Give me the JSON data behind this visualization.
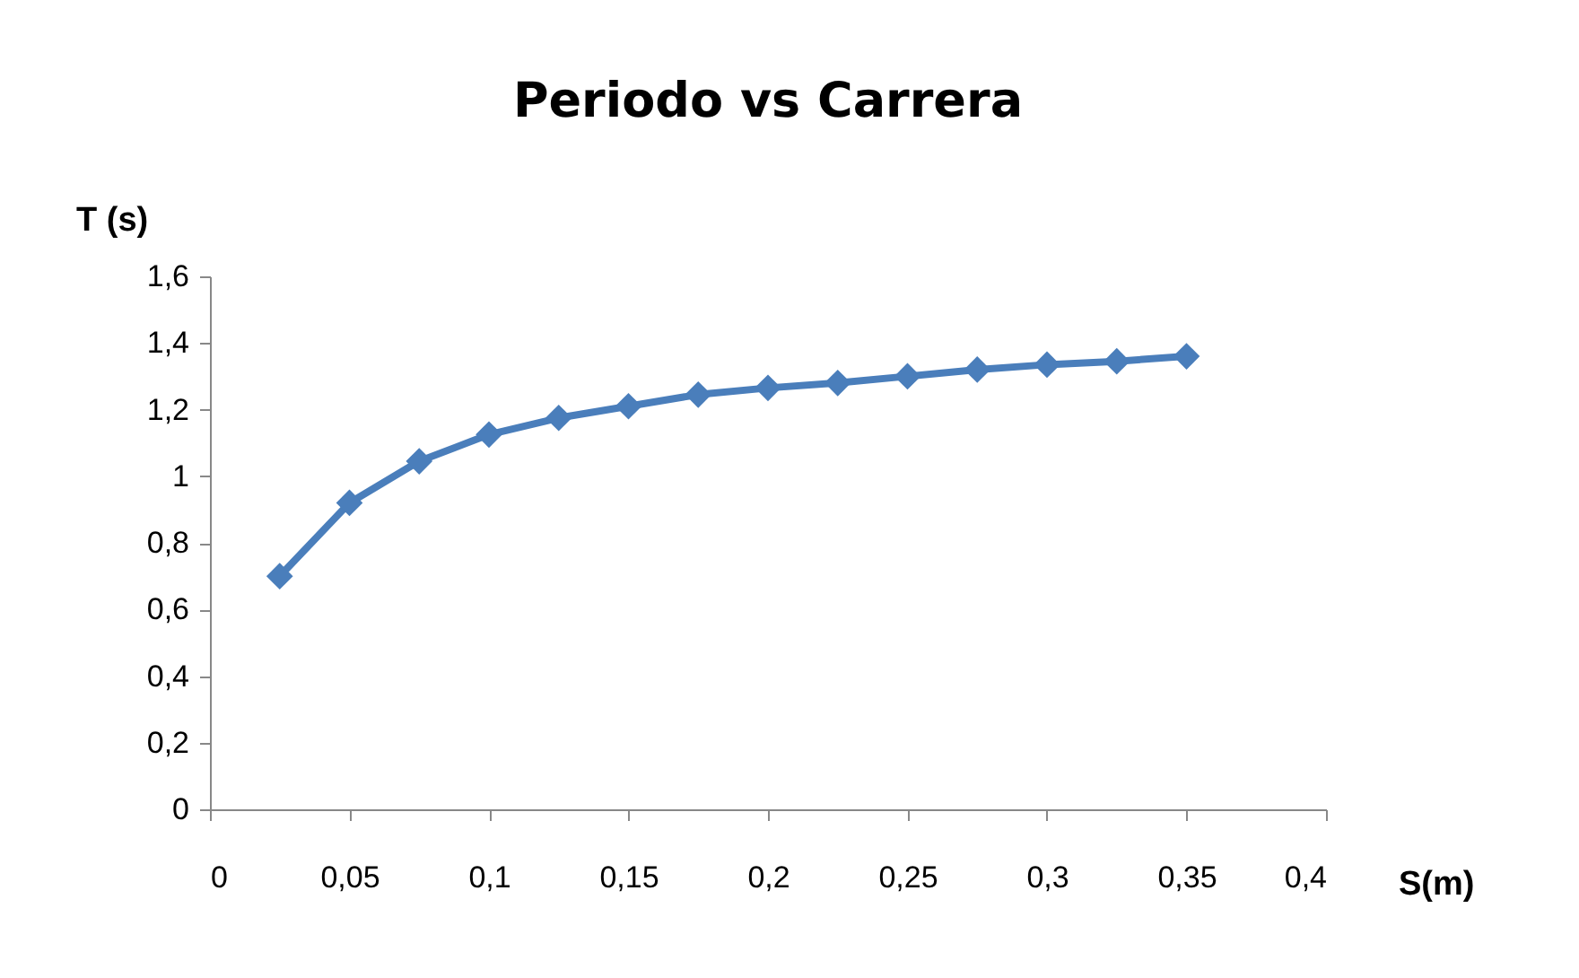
{
  "chart_data": {
    "type": "line",
    "title": "Periodo vs Carrera",
    "xlabel": "S(m)",
    "ylabel": "T (s)",
    "x": [
      0.025,
      0.05,
      0.075,
      0.1,
      0.125,
      0.15,
      0.175,
      0.2,
      0.225,
      0.25,
      0.275,
      0.3,
      0.325,
      0.35
    ],
    "series": [
      {
        "color": "#4a7ebb",
        "values": [
          0.7,
          0.92,
          1.045,
          1.125,
          1.175,
          1.21,
          1.245,
          1.265,
          1.28,
          1.3,
          1.32,
          1.335,
          1.345,
          1.36
        ]
      }
    ],
    "xlim": [
      0,
      0.4
    ],
    "xticks": [
      0,
      {
        "value": 0.05,
        "label": "0,05"
      },
      {
        "value": 0.1,
        "label": "0,1"
      },
      {
        "value": 0.15,
        "label": "0,15"
      },
      {
        "value": 0.2,
        "label": "0,2"
      },
      {
        "value": 0.25,
        "label": "0,25"
      },
      {
        "value": 0.3,
        "label": "0,3"
      },
      {
        "value": 0.35,
        "label": "0,35"
      },
      {
        "value": 0.4,
        "label": "0,4"
      }
    ],
    "ylim": [
      0,
      1.6
    ],
    "yticks": [
      0,
      {
        "value": 0.2,
        "label": "0,2"
      },
      {
        "value": 0.4,
        "label": "0,4"
      },
      {
        "value": 0.6,
        "label": "0,6"
      },
      {
        "value": 0.8,
        "label": "0,8"
      },
      1,
      {
        "value": 1.2,
        "label": "1,2"
      },
      {
        "value": 1.4,
        "label": "1,4"
      },
      {
        "value": 1.6,
        "label": "1,6"
      }
    ],
    "grid": false,
    "marker": "diamond",
    "line_style": "solid"
  }
}
